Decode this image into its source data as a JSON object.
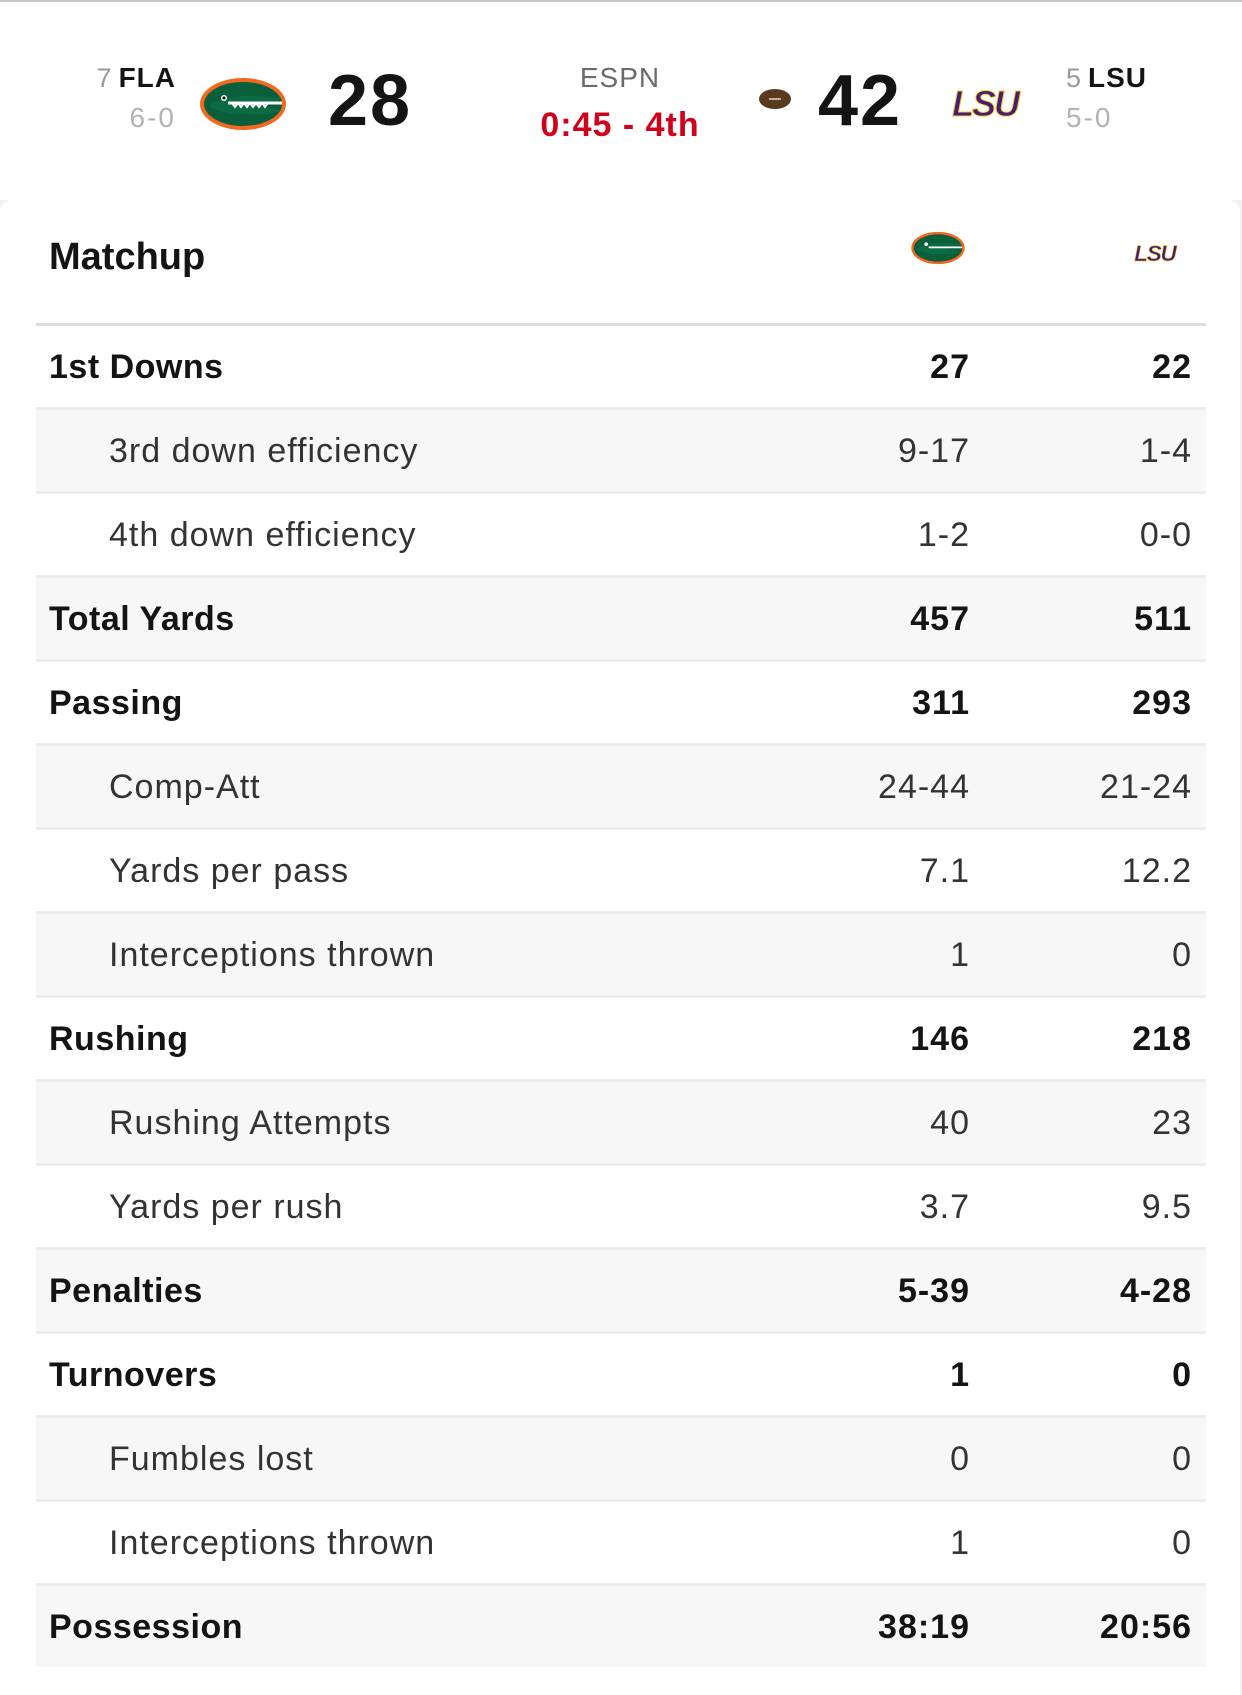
{
  "scoreboard": {
    "away": {
      "rank": "7",
      "abbr": "FLA",
      "record": "6-0",
      "score": "28",
      "logo": "gator-logo"
    },
    "home": {
      "rank": "5",
      "abbr": "LSU",
      "record": "5-0",
      "score": "42",
      "logo": "lsu-logo"
    },
    "network": "ESPN",
    "clock": "0:45 - 4th",
    "possession_icon": "football-icon"
  },
  "matchup": {
    "title": "Matchup",
    "rows": [
      {
        "label": "1st Downs",
        "away": "27",
        "home": "22",
        "type": "main"
      },
      {
        "label": "3rd down efficiency",
        "away": "9-17",
        "home": "1-4",
        "type": "sub"
      },
      {
        "label": "4th down efficiency",
        "away": "1-2",
        "home": "0-0",
        "type": "sub"
      },
      {
        "label": "Total Yards",
        "away": "457",
        "home": "511",
        "type": "main"
      },
      {
        "label": "Passing",
        "away": "311",
        "home": "293",
        "type": "main"
      },
      {
        "label": "Comp-Att",
        "away": "24-44",
        "home": "21-24",
        "type": "sub"
      },
      {
        "label": "Yards per pass",
        "away": "7.1",
        "home": "12.2",
        "type": "sub"
      },
      {
        "label": "Interceptions thrown",
        "away": "1",
        "home": "0",
        "type": "sub"
      },
      {
        "label": "Rushing",
        "away": "146",
        "home": "218",
        "type": "main"
      },
      {
        "label": "Rushing Attempts",
        "away": "40",
        "home": "23",
        "type": "sub"
      },
      {
        "label": "Yards per rush",
        "away": "3.7",
        "home": "9.5",
        "type": "sub"
      },
      {
        "label": "Penalties",
        "away": "5-39",
        "home": "4-28",
        "type": "main"
      },
      {
        "label": "Turnovers",
        "away": "1",
        "home": "0",
        "type": "main"
      },
      {
        "label": "Fumbles lost",
        "away": "0",
        "home": "0",
        "type": "sub"
      },
      {
        "label": "Interceptions thrown",
        "away": "1",
        "home": "0",
        "type": "sub"
      },
      {
        "label": "Possession",
        "away": "38:19",
        "home": "20:56",
        "type": "main"
      }
    ]
  },
  "colors": {
    "clock_red": "#d0021b",
    "gator_green": "#0a5e3a",
    "gator_orange": "#f26a21",
    "lsu_purple": "#461d7c",
    "lsu_gold": "#fdd023"
  }
}
